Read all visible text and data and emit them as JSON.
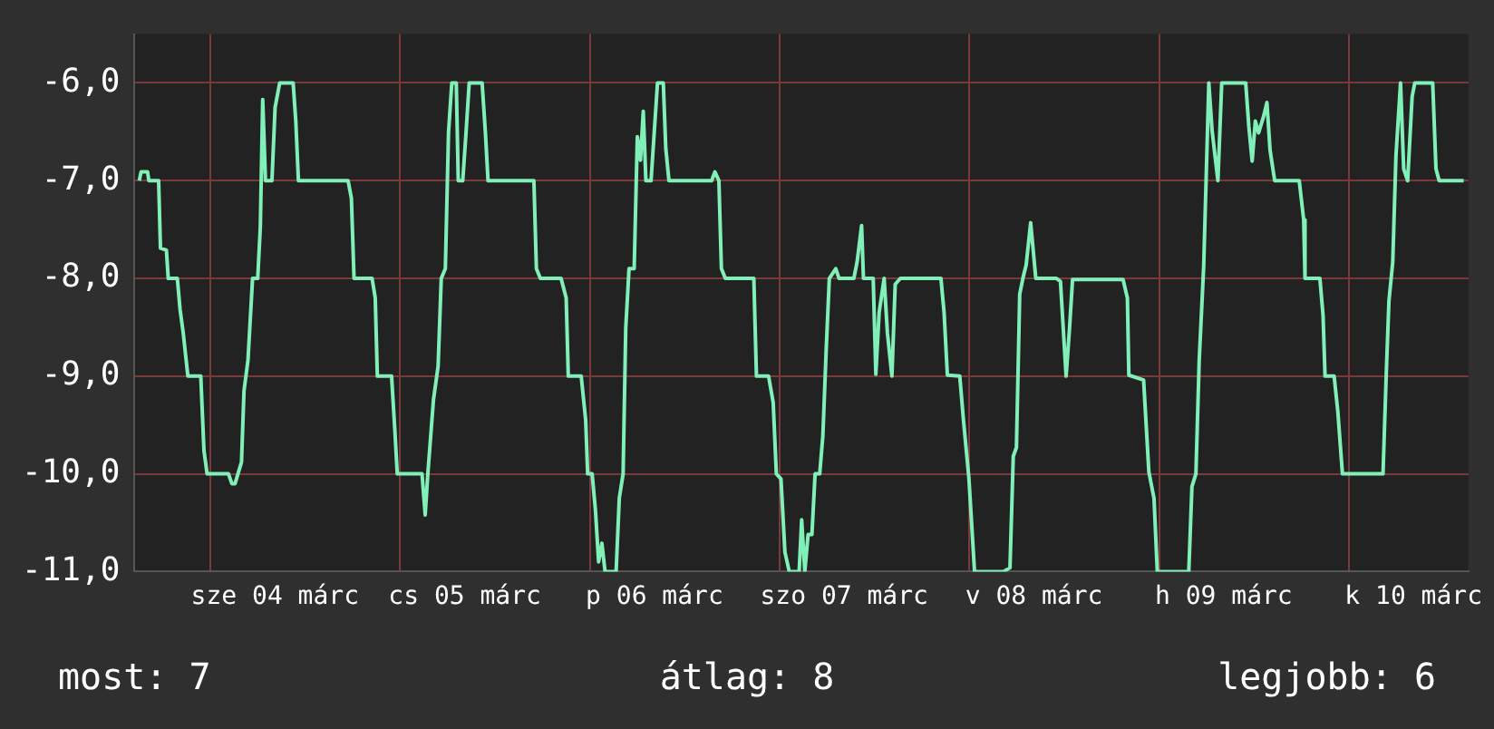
{
  "chart_data": {
    "type": "line",
    "x": [
      "--03-03T15:00",
      "--03-03T15:14",
      "--03-03T16:03",
      "--03-03T16:13",
      "--03-03T17:27",
      "--03-03T17:41",
      "--03-03T18:26",
      "--03-03T18:40",
      "--03-03T19:49",
      "--03-03T20:10",
      "--03-03T20:34",
      "--03-03T21:09",
      "--03-03T22:47",
      "--03-03T23:11",
      "--03-03T23:35",
      "--03-04T02:17",
      "--03-04T02:43",
      "--03-04T03:07",
      "--03-04T03:56",
      "--03-04T04:15",
      "--03-04T04:45",
      "--03-04T05:20",
      "--03-04T05:59",
      "--03-04T06:19",
      "--03-04T06:37",
      "--03-04T06:58",
      "--03-04T07:47",
      "--03-04T08:11",
      "--03-04T08:46",
      "--03-04T10:28",
      "--03-04T10:48",
      "--03-04T11:08",
      "--03-04T17:25",
      "--03-04T17:50",
      "--03-04T18:10",
      "--03-04T20:27",
      "--03-04T20:51",
      "--03-04T21:07",
      "--03-04T22:55",
      "--03-04T23:20",
      "--03-04T23:38",
      "--03-05T02:46",
      "--03-05T03:10",
      "--03-05T03:30",
      "--03-05T04:13",
      "--03-05T04:48",
      "--03-05T05:12",
      "--03-05T05:43",
      "--03-05T06:07",
      "--03-05T06:32",
      "--03-05T07:06",
      "--03-05T07:21",
      "--03-05T07:55",
      "--03-05T08:20",
      "--03-05T08:44",
      "--03-05T10:22",
      "--03-05T10:47",
      "--03-05T11:07",
      "--03-05T16:55",
      "--03-05T17:14",
      "--03-05T17:44",
      "--03-05T20:21",
      "--03-05T21:00",
      "--03-05T21:16",
      "--03-05T22:54",
      "--03-05T23:28",
      "--03-05T23:43",
      "--03-06T00:17",
      "--03-06T00:42",
      "--03-06T01:06",
      "--03-06T01:31",
      "--03-06T01:55",
      "--03-06T03:19",
      "--03-06T03:43",
      "--03-06T04:12",
      "--03-06T04:32",
      "--03-06T04:57",
      "--03-06T05:36",
      "--03-06T06:00",
      "--03-06T06:24",
      "--03-06T06:45",
      "--03-06T07:05",
      "--03-06T07:44",
      "--03-06T08:33",
      "--03-06T09:17",
      "--03-06T09:36",
      "--03-06T10:00",
      "--03-06T15:24",
      "--03-06T15:49",
      "--03-06T16:19",
      "--03-06T16:38",
      "--03-06T17:08",
      "--03-06T20:44",
      "--03-06T21:04",
      "--03-06T22:36",
      "--03-06T23:11",
      "--03-06T23:35",
      "--03-07T00:10",
      "--03-07T00:40",
      "--03-07T01:13",
      "--03-07T02:28",
      "--03-07T02:47",
      "--03-07T03:11",
      "--03-07T03:36",
      "--03-07T04:05",
      "--03-07T04:29",
      "--03-07T05:04",
      "--03-07T05:28",
      "--03-07T05:53",
      "--03-07T06:17",
      "--03-07T07:06",
      "--03-07T07:31",
      "--03-07T09:23",
      "--03-07T09:48",
      "--03-07T10:22",
      "--03-07T10:36",
      "--03-07T11:50",
      "--03-07T12:10",
      "--03-07T12:35",
      "--03-07T13:13",
      "--03-07T13:38",
      "--03-07T14:12",
      "--03-07T14:37",
      "--03-07T15:16",
      "--03-07T20:24",
      "--03-07T20:48",
      "--03-07T21:13",
      "--03-07T22:47",
      "--03-07T23:15",
      "--03-07T23:56",
      "--03-08T00:39",
      "--03-08T04:19",
      "--03-08T05:08",
      "--03-08T05:33",
      "--03-08T05:57",
      "--03-08T06:22",
      "--03-08T06:46",
      "--03-08T07:11",
      "--03-08T07:45",
      "--03-08T08:24",
      "--03-08T11:01",
      "--03-08T11:31",
      "--03-08T12:14",
      "--03-08T12:39",
      "--03-08T13:03",
      "--03-08T19:26",
      "--03-08T19:59",
      "--03-08T20:10",
      "--03-08T22:02",
      "--03-08T22:42",
      "--03-08T23:21",
      "--03-08T23:46",
      "--03-09T03:45",
      "--03-09T04:09",
      "--03-09T04:39",
      "--03-09T05:04",
      "--03-09T05:38",
      "--03-09T06:17",
      "--03-09T06:42",
      "--03-09T07:26",
      "--03-09T07:55",
      "--03-09T10:57",
      "--03-09T11:21",
      "--03-09T11:46",
      "--03-09T12:10",
      "--03-09T12:35",
      "--03-09T13:13",
      "--03-09T13:38",
      "--03-09T14:02",
      "--03-09T14:37",
      "--03-09T17:43",
      "--03-09T18:17",
      "--03-09T18:27",
      "--03-09T20:20",
      "--03-09T20:44",
      "--03-09T20:59",
      "--03-09T22:08",
      "--03-09T22:36",
      "--03-09T23:11",
      "--03-10T04:19",
      "--03-10T04:44",
      "--03-10T05:04",
      "--03-10T05:33",
      "--03-10T05:57",
      "--03-10T06:32",
      "--03-10T06:56",
      "--03-10T07:26",
      "--03-10T08:00",
      "--03-10T08:20",
      "--03-10T10:36",
      "--03-10T11:01",
      "--03-10T11:25",
      "--03-10T14:31"
    ],
    "series": [
      {
        "color": "#80f0b8",
        "values": [
          -7,
          -6.91,
          -6.91,
          -7,
          -7,
          -7.69,
          -7.71,
          -8,
          -8,
          -8.32,
          -8.56,
          -9,
          -9,
          -9.76,
          -10,
          -10,
          -10.1,
          -10.1,
          -9.88,
          -9.15,
          -8.84,
          -8,
          -8,
          -7.47,
          -6.17,
          -7,
          -7,
          -6.25,
          -6,
          -6,
          -6.39,
          -7,
          -7,
          -7.18,
          -8,
          -8,
          -8.2,
          -9,
          -9,
          -9.56,
          -10,
          -10,
          -10.42,
          -10,
          -9.24,
          -8.9,
          -8,
          -7.9,
          -6.51,
          -6,
          -6,
          -7,
          -7,
          -6.51,
          -6,
          -6,
          -6.51,
          -7,
          -7,
          -7.9,
          -8,
          -8,
          -8.2,
          -9,
          -9,
          -9.45,
          -10,
          -10,
          -10.37,
          -10.9,
          -10.71,
          -11,
          -11,
          -10.25,
          -10,
          -8.51,
          -7.9,
          -7.9,
          -6.55,
          -6.79,
          -6.29,
          -7,
          -7,
          -6,
          -6,
          -6.67,
          -7,
          -7,
          -6.91,
          -7,
          -7.9,
          -8,
          -8,
          -9,
          -9,
          -9.27,
          -10,
          -10.05,
          -10.8,
          -11,
          -11,
          -10.47,
          -11,
          -10.62,
          -10.62,
          -10,
          -10,
          -9.61,
          -8.74,
          -8,
          -7.9,
          -8,
          -8,
          -7.83,
          -7.46,
          -8,
          -8,
          -8.98,
          -8.35,
          -8,
          -8.56,
          -9,
          -8.06,
          -8,
          -8,
          -8.35,
          -8.99,
          -9,
          -9.45,
          -10.04,
          -11,
          -11,
          -10.96,
          -9.82,
          -9.73,
          -8.16,
          -8,
          -7.86,
          -7.43,
          -8,
          -8,
          -8.03,
          -9,
          -8.53,
          -8.01,
          -8.01,
          -8.2,
          -8.99,
          -9.04,
          -9.98,
          -10.25,
          -11,
          -11,
          -10.13,
          -10,
          -8.84,
          -7.88,
          -6,
          -6.49,
          -7,
          -6,
          -6,
          -6.45,
          -6.8,
          -6.39,
          -6.51,
          -6.34,
          -6.2,
          -6.69,
          -7,
          -7,
          -7.4,
          -8,
          -8,
          -8.38,
          -9,
          -9,
          -9.36,
          -10,
          -10,
          -8.96,
          -8.23,
          -7.83,
          -6.75,
          -6,
          -6.88,
          -7,
          -6.14,
          -6,
          -6,
          -6.88,
          -7,
          -7
        ]
      }
    ],
    "xlim": [
      "--03-03T14:24",
      "--03-10T15:07"
    ],
    "xticks": [
      {
        "value": "--03-04T00:00",
        "label": null
      },
      {
        "value": "--03-04T08:10",
        "label": "sze 04 márc"
      },
      {
        "value": "--03-05T00:00",
        "label": null
      },
      {
        "value": "--03-05T08:10",
        "label": "cs 05 márc"
      },
      {
        "value": "--03-06T00:00",
        "label": null
      },
      {
        "value": "--03-06T08:10",
        "label": "p 06 márc"
      },
      {
        "value": "--03-07T00:00",
        "label": null
      },
      {
        "value": "--03-07T08:10",
        "label": "szo 07 márc"
      },
      {
        "value": "--03-08T00:00",
        "label": null
      },
      {
        "value": "--03-08T08:10",
        "label": "v 08 márc"
      },
      {
        "value": "--03-09T00:00",
        "label": null
      },
      {
        "value": "--03-09T08:10",
        "label": "h 09 márc"
      },
      {
        "value": "--03-10T00:00",
        "label": null
      },
      {
        "value": "--03-10T08:10",
        "label": "k 10 márc"
      }
    ],
    "ylim": [
      -11,
      -5.5
    ],
    "yticks": [
      {
        "value": -11,
        "label": "-11,0"
      },
      {
        "value": -10,
        "label": "-10,0"
      },
      {
        "value": -9,
        "label": "-9,0"
      },
      {
        "value": -8,
        "label": "-8,0"
      },
      {
        "value": -7,
        "label": "-7,0"
      },
      {
        "value": -6,
        "label": "-6,0"
      }
    ],
    "grid": true,
    "legend": false,
    "marker": "none",
    "line_style": "solid",
    "annotations": [
      "most: 7",
      "átlag: 8",
      "legjobb: 6"
    ]
  }
}
